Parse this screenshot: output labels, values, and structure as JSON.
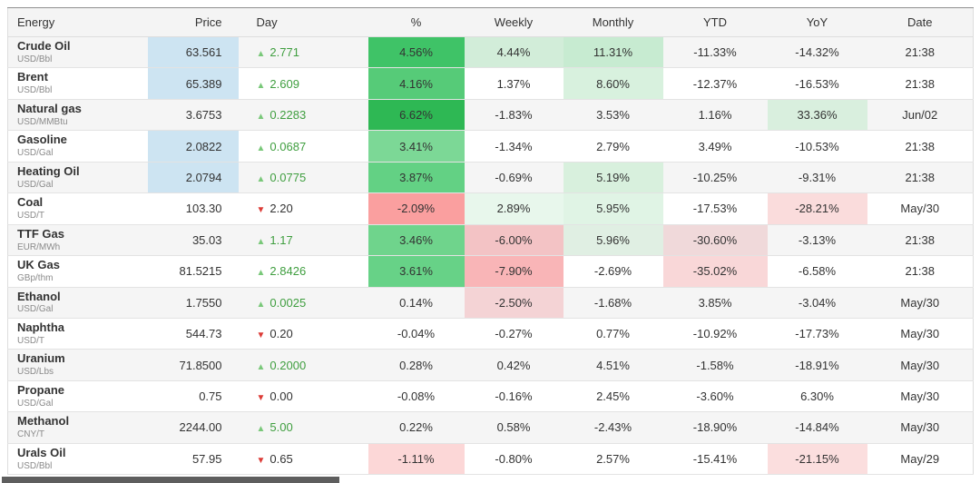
{
  "colors": {
    "price_highlight": "#cde4f2",
    "positive_text": "#3f9e3f",
    "up_triangle": "#79c879",
    "down_triangle": "#dc3b36",
    "strong_green": "#2eb854",
    "strong_red": "#fa9f9f"
  },
  "icons": {
    "up": "▲",
    "down": "▼"
  },
  "table": {
    "columns": [
      {
        "label": "Energy"
      },
      {
        "label": "Price"
      },
      {
        "label": "Day"
      },
      {
        "label": "%"
      },
      {
        "label": "Weekly"
      },
      {
        "label": "Monthly"
      },
      {
        "label": "YTD"
      },
      {
        "label": "YoY"
      },
      {
        "label": "Date"
      }
    ],
    "rows": [
      {
        "name": "Crude Oil",
        "unit": "USD/Bbl",
        "price": {
          "v": "63.561",
          "hl": true
        },
        "day": {
          "dir": "up",
          "v": "2.771"
        },
        "pct": {
          "v": "4.56%",
          "bg": "#3fc367"
        },
        "weekly": {
          "v": "4.44%",
          "bg": "#d2edd9"
        },
        "monthly": {
          "v": "11.31%",
          "bg": "#c7ebd1"
        },
        "ytd": {
          "v": "-11.33%"
        },
        "yoy": {
          "v": "-14.32%"
        },
        "date": {
          "v": "21:38"
        }
      },
      {
        "name": "Brent",
        "unit": "USD/Bbl",
        "price": {
          "v": "65.389",
          "hl": true
        },
        "day": {
          "dir": "up",
          "v": "2.609"
        },
        "pct": {
          "v": "4.16%",
          "bg": "#56cb78"
        },
        "weekly": {
          "v": "1.37%"
        },
        "monthly": {
          "v": "8.60%",
          "bg": "#d8f1de"
        },
        "ytd": {
          "v": "-12.37%"
        },
        "yoy": {
          "v": "-16.53%"
        },
        "date": {
          "v": "21:38"
        }
      },
      {
        "name": "Natural gas",
        "unit": "USD/MMBtu",
        "price": {
          "v": "3.6753",
          "hl": false
        },
        "day": {
          "dir": "up",
          "v": "0.2283"
        },
        "pct": {
          "v": "6.62%",
          "bg": "#2eb854"
        },
        "weekly": {
          "v": "-1.83%"
        },
        "monthly": {
          "v": "3.53%"
        },
        "ytd": {
          "v": "1.16%"
        },
        "yoy": {
          "v": "33.36%",
          "bg": "#d9efde"
        },
        "date": {
          "v": "Jun/02"
        }
      },
      {
        "name": "Gasoline",
        "unit": "USD/Gal",
        "price": {
          "v": "2.0822",
          "hl": true
        },
        "day": {
          "dir": "up",
          "v": "0.0687"
        },
        "pct": {
          "v": "3.41%",
          "bg": "#7cd896"
        },
        "weekly": {
          "v": "-1.34%"
        },
        "monthly": {
          "v": "2.79%"
        },
        "ytd": {
          "v": "3.49%"
        },
        "yoy": {
          "v": "-10.53%"
        },
        "date": {
          "v": "21:38"
        }
      },
      {
        "name": "Heating Oil",
        "unit": "USD/Gal",
        "price": {
          "v": "2.0794",
          "hl": true
        },
        "day": {
          "dir": "up",
          "v": "0.0775"
        },
        "pct": {
          "v": "3.87%",
          "bg": "#63d184"
        },
        "weekly": {
          "v": "-0.69%"
        },
        "monthly": {
          "v": "5.19%",
          "bg": "#d8f0dd"
        },
        "ytd": {
          "v": "-10.25%"
        },
        "yoy": {
          "v": "-9.31%"
        },
        "date": {
          "v": "21:38"
        }
      },
      {
        "name": "Coal",
        "unit": "USD/T",
        "price": {
          "v": "103.30",
          "hl": false
        },
        "day": {
          "dir": "down",
          "v": "2.20"
        },
        "pct": {
          "v": "-2.09%",
          "bg": "#fa9f9f"
        },
        "weekly": {
          "v": "2.89%",
          "bg": "#e8f7ec"
        },
        "monthly": {
          "v": "5.95%",
          "bg": "#e0f4e5"
        },
        "ytd": {
          "v": "-17.53%"
        },
        "yoy": {
          "v": "-28.21%",
          "bg": "#fadcdc"
        },
        "date": {
          "v": "May/30"
        }
      },
      {
        "name": "TTF Gas",
        "unit": "EUR/MWh",
        "price": {
          "v": "35.03",
          "hl": false
        },
        "day": {
          "dir": "up",
          "v": "1.17"
        },
        "pct": {
          "v": "3.46%",
          "bg": "#6fd48c"
        },
        "weekly": {
          "v": "-6.00%",
          "bg": "#f3c3c5"
        },
        "monthly": {
          "v": "5.96%",
          "bg": "#e0efe3"
        },
        "ytd": {
          "v": "-30.60%",
          "bg": "#f0d9da"
        },
        "yoy": {
          "v": "-3.13%"
        },
        "date": {
          "v": "21:38"
        }
      },
      {
        "name": "UK Gas",
        "unit": "GBp/thm",
        "price": {
          "v": "81.5215",
          "hl": false
        },
        "day": {
          "dir": "up",
          "v": "2.8426"
        },
        "pct": {
          "v": "3.61%",
          "bg": "#67d287"
        },
        "weekly": {
          "v": "-7.90%",
          "bg": "#f9b5b7"
        },
        "monthly": {
          "v": "-2.69%"
        },
        "ytd": {
          "v": "-35.02%",
          "bg": "#f9d7d8"
        },
        "yoy": {
          "v": "-6.58%"
        },
        "date": {
          "v": "21:38"
        }
      },
      {
        "name": "Ethanol",
        "unit": "USD/Gal",
        "price": {
          "v": "1.7550",
          "hl": false
        },
        "day": {
          "dir": "up",
          "v": "0.0025"
        },
        "pct": {
          "v": "0.14%"
        },
        "weekly": {
          "v": "-2.50%",
          "bg": "#f4d3d5"
        },
        "monthly": {
          "v": "-1.68%"
        },
        "ytd": {
          "v": "3.85%"
        },
        "yoy": {
          "v": "-3.04%"
        },
        "date": {
          "v": "May/30"
        }
      },
      {
        "name": "Naphtha",
        "unit": "USD/T",
        "price": {
          "v": "544.73",
          "hl": false
        },
        "day": {
          "dir": "down",
          "v": "0.20"
        },
        "pct": {
          "v": "-0.04%"
        },
        "weekly": {
          "v": "-0.27%"
        },
        "monthly": {
          "v": "0.77%"
        },
        "ytd": {
          "v": "-10.92%"
        },
        "yoy": {
          "v": "-17.73%"
        },
        "date": {
          "v": "May/30"
        }
      },
      {
        "name": "Uranium",
        "unit": "USD/Lbs",
        "price": {
          "v": "71.8500",
          "hl": false
        },
        "day": {
          "dir": "up",
          "v": "0.2000"
        },
        "pct": {
          "v": "0.28%"
        },
        "weekly": {
          "v": "0.42%"
        },
        "monthly": {
          "v": "4.51%"
        },
        "ytd": {
          "v": "-1.58%"
        },
        "yoy": {
          "v": "-18.91%"
        },
        "date": {
          "v": "May/30"
        }
      },
      {
        "name": "Propane",
        "unit": "USD/Gal",
        "price": {
          "v": "0.75",
          "hl": false
        },
        "day": {
          "dir": "down",
          "v": "0.00"
        },
        "pct": {
          "v": "-0.08%"
        },
        "weekly": {
          "v": "-0.16%"
        },
        "monthly": {
          "v": "2.45%"
        },
        "ytd": {
          "v": "-3.60%"
        },
        "yoy": {
          "v": "6.30%"
        },
        "date": {
          "v": "May/30"
        }
      },
      {
        "name": "Methanol",
        "unit": "CNY/T",
        "price": {
          "v": "2244.00",
          "hl": false
        },
        "day": {
          "dir": "up",
          "v": "5.00"
        },
        "pct": {
          "v": "0.22%"
        },
        "weekly": {
          "v": "0.58%"
        },
        "monthly": {
          "v": "-2.43%"
        },
        "ytd": {
          "v": "-18.90%"
        },
        "yoy": {
          "v": "-14.84%"
        },
        "date": {
          "v": "May/30"
        }
      },
      {
        "name": "Urals Oil",
        "unit": "USD/Bbl",
        "price": {
          "v": "57.95",
          "hl": false
        },
        "day": {
          "dir": "down",
          "v": "0.65"
        },
        "pct": {
          "v": "-1.11%",
          "bg": "#fcd7d7"
        },
        "weekly": {
          "v": "-0.80%"
        },
        "monthly": {
          "v": "2.57%"
        },
        "ytd": {
          "v": "-15.41%"
        },
        "yoy": {
          "v": "-21.15%",
          "bg": "#fbdede"
        },
        "date": {
          "v": "May/29"
        }
      }
    ]
  }
}
